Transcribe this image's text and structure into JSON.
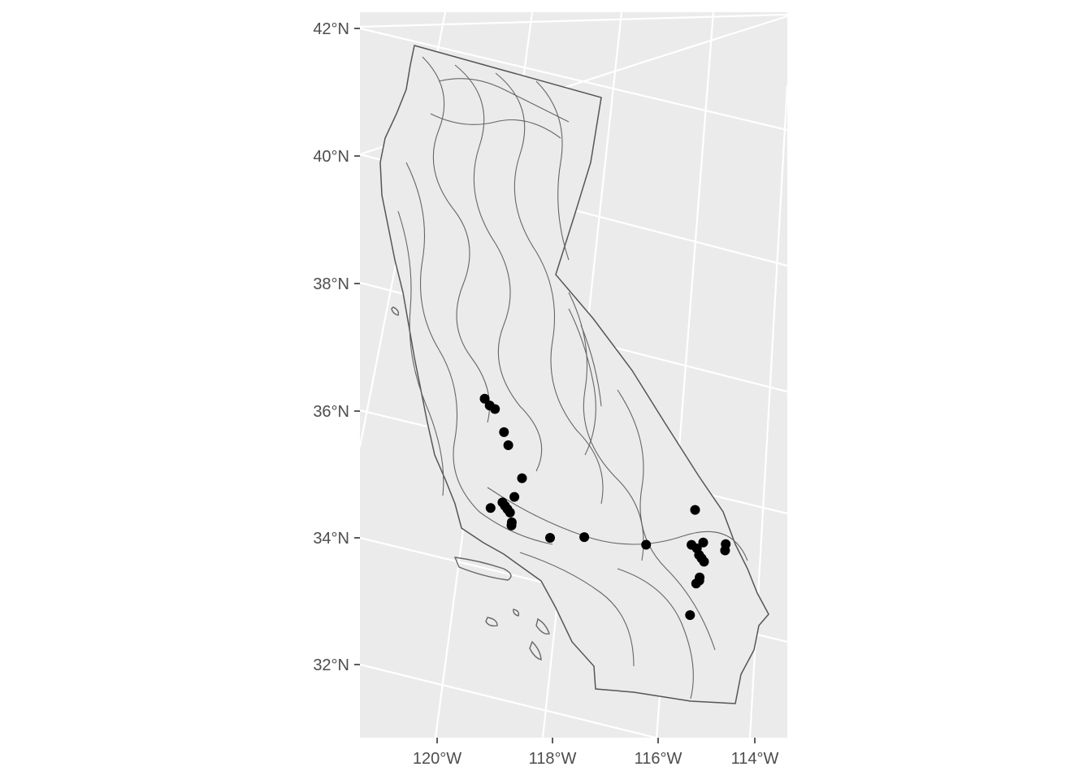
{
  "map": {
    "type": "map",
    "colors": {
      "panel_background": "#ebebeb",
      "graticule": "#ffffff",
      "boundary": "#555555",
      "point": "#000000",
      "axis_text": "#4d4d4d"
    },
    "latitude_labels": [
      "42°N",
      "40°N",
      "38°N",
      "36°N",
      "34°N",
      "32°N"
    ],
    "longitude_labels": [
      "120°W",
      "118°W",
      "116°W",
      "114°W"
    ],
    "points": [
      {
        "lon": -119.4,
        "lat": 36.1
      },
      {
        "lon": -119.3,
        "lat": 36.0
      },
      {
        "lon": -119.2,
        "lat": 35.95
      },
      {
        "lon": -119.0,
        "lat": 35.6
      },
      {
        "lon": -118.9,
        "lat": 35.4
      },
      {
        "lon": -118.6,
        "lat": 34.9
      },
      {
        "lon": -118.7,
        "lat": 34.6
      },
      {
        "lon": -118.9,
        "lat": 34.5
      },
      {
        "lon": -118.85,
        "lat": 34.45
      },
      {
        "lon": -118.8,
        "lat": 34.4
      },
      {
        "lon": -118.75,
        "lat": 34.35
      },
      {
        "lon": -119.1,
        "lat": 34.4
      },
      {
        "lon": -118.7,
        "lat": 34.2
      },
      {
        "lon": -118.7,
        "lat": 34.15
      },
      {
        "lon": -118.0,
        "lat": 34.0
      },
      {
        "lon": -117.4,
        "lat": 34.05
      },
      {
        "lon": -116.3,
        "lat": 34.0
      },
      {
        "lon": -115.5,
        "lat": 34.6
      },
      {
        "lon": -115.5,
        "lat": 34.05
      },
      {
        "lon": -115.4,
        "lat": 34.0
      },
      {
        "lon": -115.3,
        "lat": 34.1
      },
      {
        "lon": -115.35,
        "lat": 33.9
      },
      {
        "lon": -115.3,
        "lat": 33.85
      },
      {
        "lon": -115.25,
        "lat": 33.8
      },
      {
        "lon": -114.9,
        "lat": 34.1
      },
      {
        "lon": -114.9,
        "lat": 34.0
      },
      {
        "lon": -115.3,
        "lat": 33.5
      },
      {
        "lon": -115.35,
        "lat": 33.45
      },
      {
        "lon": -115.3,
        "lat": 33.55
      },
      {
        "lon": -115.4,
        "lat": 32.95
      }
    ]
  }
}
